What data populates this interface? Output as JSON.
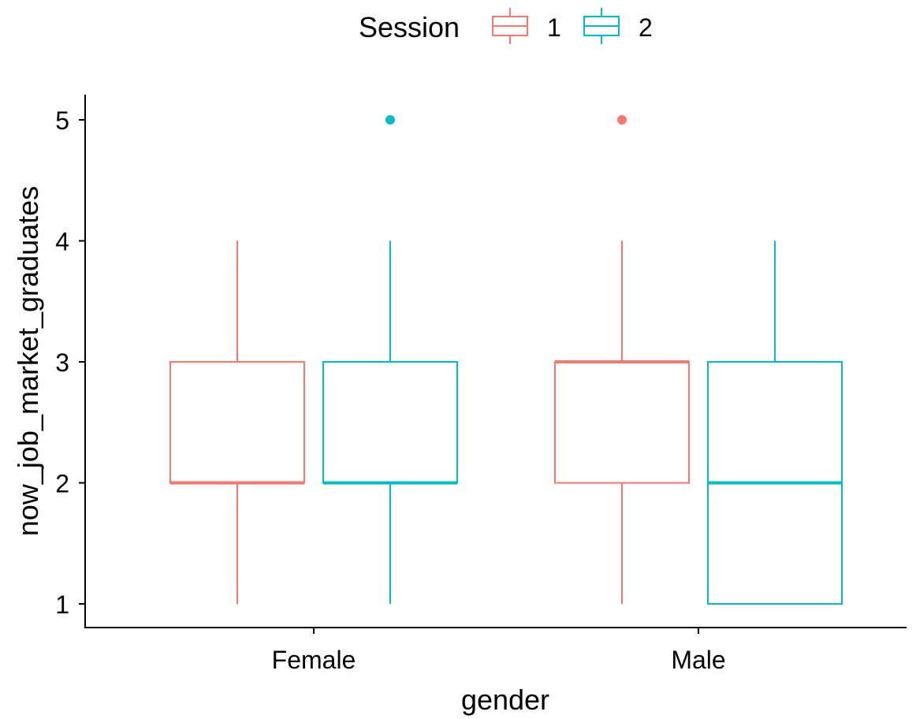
{
  "chart_data": {
    "type": "boxplot",
    "xlabel": "gender",
    "ylabel": "now_job_market_graduates",
    "categories": [
      "Female",
      "Male"
    ],
    "ylim": [
      0.8,
      5.2
    ],
    "yticks": [
      1,
      2,
      3,
      4,
      5
    ],
    "grid": false,
    "legend": {
      "title": "Session",
      "position": "top",
      "entries": [
        {
          "label": "1",
          "color": "#F8766D"
        },
        {
          "label": "2",
          "color": "#00BFC4"
        }
      ]
    },
    "series": [
      {
        "name": "1",
        "color": "#F8766D",
        "boxes": [
          {
            "category": "Female",
            "min": 1,
            "q1": 2,
            "median": 2,
            "q3": 3,
            "max": 4,
            "outliers": []
          },
          {
            "category": "Male",
            "min": 1,
            "q1": 2,
            "median": 3,
            "q3": 3,
            "max": 4,
            "outliers": [
              5
            ]
          }
        ]
      },
      {
        "name": "2",
        "color": "#00BFC4",
        "boxes": [
          {
            "category": "Female",
            "min": 1,
            "q1": 2,
            "median": 2,
            "q3": 3,
            "max": 4,
            "outliers": [
              5
            ]
          },
          {
            "category": "Male",
            "min": 1,
            "q1": 1,
            "median": 2,
            "q3": 3,
            "max": 4,
            "outliers": []
          }
        ]
      }
    ]
  }
}
